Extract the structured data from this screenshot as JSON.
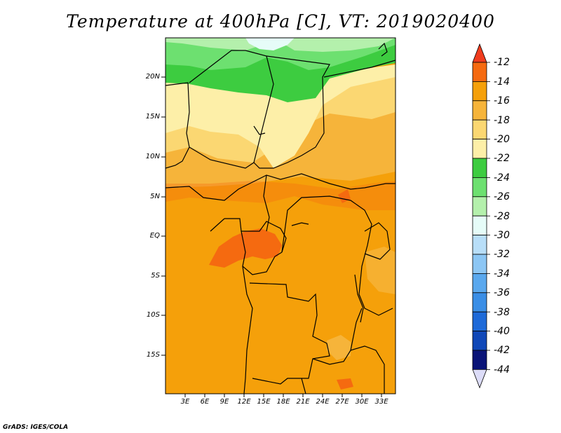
{
  "title": "Temperature at 400hPa [C], VT: 2019020400",
  "credit": "GrADS: IGES/COLA",
  "map": {
    "lat_ticks": [
      "20N",
      "15N",
      "10N",
      "5N",
      "EQ",
      "5S",
      "10S",
      "15S"
    ],
    "lon_ticks": [
      "3E",
      "6E",
      "9E",
      "12E",
      "15E",
      "18E",
      "21E",
      "24E",
      "27E",
      "30E",
      "33E"
    ]
  },
  "colorbar": {
    "labels": [
      "-12",
      "-14",
      "-16",
      "-18",
      "-20",
      "-22",
      "-24",
      "-26",
      "-28",
      "-30",
      "-32",
      "-34",
      "-36",
      "-38",
      "-40",
      "-42",
      "-44"
    ],
    "colors": [
      "#f03c1e",
      "#f56a10",
      "#f5a00a",
      "#f6b43a",
      "#fbd772",
      "#fdefa8",
      "#3dcc40",
      "#6de070",
      "#b4f0ac",
      "#e6fcf8",
      "#b8def8",
      "#8cc6f4",
      "#5aa8ee",
      "#3a8ee6",
      "#1e6ad8",
      "#1048b8",
      "#0a1478",
      "#dcdcf8"
    ]
  }
}
